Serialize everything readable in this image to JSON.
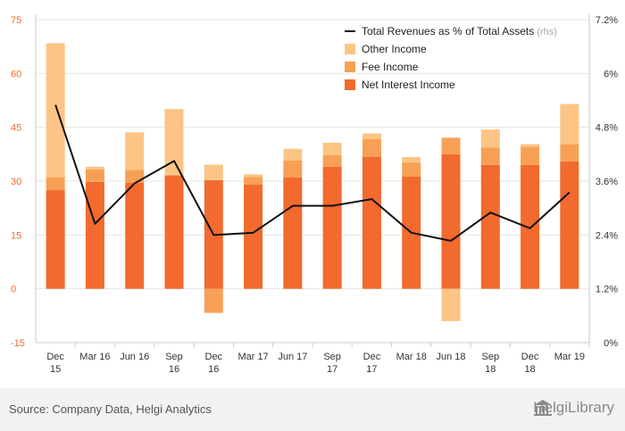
{
  "chart_data": {
    "type": "bar",
    "stacked": true,
    "categories": [
      "Dec\n15",
      "Mar 16",
      "Jun 16",
      "Sep\n16",
      "Dec\n16",
      "Mar 17",
      "Jun 17",
      "Sep\n17",
      "Dec\n17",
      "Mar 18",
      "Jun 18",
      "Sep\n18",
      "Dec\n18",
      "Mar 19"
    ],
    "series": [
      {
        "name": "Net Interest Income",
        "color": "#f26a2e",
        "values": [
          27.5,
          29.8,
          29.5,
          31.5,
          30.3,
          29.0,
          31.0,
          34.0,
          36.8,
          31.3,
          37.5,
          34.5,
          34.5,
          35.5
        ]
      },
      {
        "name": "Fee Income",
        "color": "#f7a055",
        "values": [
          3.6,
          3.5,
          3.6,
          0.3,
          -6.7,
          2.2,
          4.8,
          3.3,
          4.9,
          3.9,
          4.6,
          4.9,
          5.1,
          4.8
        ]
      },
      {
        "name": "Other Income",
        "color": "#fcc585",
        "values": [
          37.3,
          0.7,
          10.5,
          18.3,
          4.3,
          0.7,
          3.2,
          3.4,
          1.6,
          1.5,
          -9.0,
          5.0,
          0.7,
          11.2
        ]
      }
    ],
    "line_series": {
      "name": "Total Revenues as % of Total Assets",
      "axis": "rhs",
      "color": "#111111",
      "values": [
        5.3,
        2.65,
        3.55,
        4.05,
        2.4,
        2.45,
        3.05,
        3.05,
        3.2,
        2.45,
        2.27,
        2.9,
        2.55,
        3.35
      ]
    },
    "y_left": {
      "min": -15,
      "max": 75,
      "ticks": [
        "75",
        "60",
        "45",
        "30",
        "15",
        "0",
        "-15"
      ],
      "tick_values": [
        75,
        60,
        45,
        30,
        15,
        0,
        -15
      ],
      "color": "#f26a2e"
    },
    "y_right": {
      "min": 0,
      "max": 7.2,
      "ticks": [
        "7.2%",
        "6%",
        "4.8%",
        "3.6%",
        "2.4%",
        "1.2%",
        "0%"
      ],
      "tick_values": [
        7.2,
        6,
        4.8,
        3.6,
        2.4,
        1.2,
        0
      ]
    },
    "legend": [
      {
        "label": "Total Revenues as % of Total Assets",
        "suffix": "(rhs)",
        "kind": "line",
        "color": "#111111"
      },
      {
        "label": "Other Income",
        "kind": "box",
        "color": "#fcc585"
      },
      {
        "label": "Fee Income",
        "kind": "box",
        "color": "#f7a055"
      },
      {
        "label": "Net Interest Income",
        "kind": "box",
        "color": "#f26a2e"
      }
    ],
    "legend_position": "top-right",
    "title": "",
    "xlabel": "",
    "ylabel": ""
  },
  "footer": {
    "source": "Source: Company Data, Helgi Analytics",
    "brand": "HelgiLibrary",
    "logo_icon": "library-building-icon"
  }
}
